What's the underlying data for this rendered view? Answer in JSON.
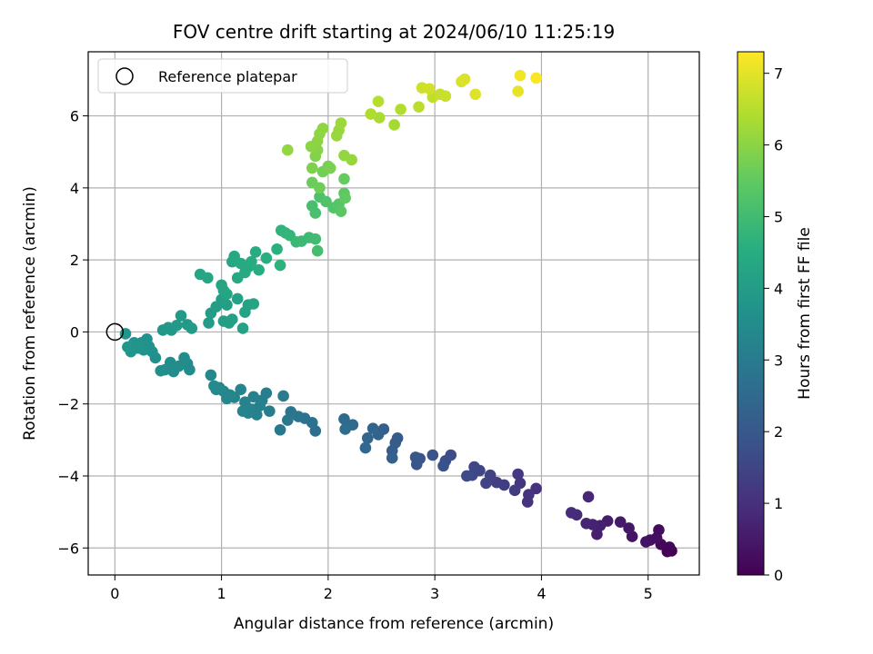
{
  "chart_data": {
    "type": "scatter",
    "title": "FOV centre drift starting at 2024/06/10 11:25:19",
    "xlabel": "Angular distance from reference (arcmin)",
    "ylabel": "Rotation from reference (arcmin)",
    "xlim": [
      -0.25,
      5.48
    ],
    "ylim": [
      -6.75,
      7.78
    ],
    "xticks": [
      0,
      1,
      2,
      3,
      4,
      5
    ],
    "yticks": [
      -6,
      -4,
      -2,
      0,
      2,
      4,
      6
    ],
    "grid": true,
    "legend": {
      "position": "top-left",
      "entries": [
        "Reference platepar"
      ]
    },
    "reference_point": {
      "x": 0,
      "y": 0
    },
    "colorbar": {
      "label": "Hours from first FF file",
      "range": [
        0,
        7.3
      ],
      "ticks": [
        0,
        1,
        2,
        3,
        4,
        5,
        6,
        7
      ],
      "colormap": "viridis"
    },
    "points": [
      {
        "x": 5.22,
        "y": -6.08,
        "c": 0.0
      },
      {
        "x": 5.18,
        "y": -6.1,
        "c": 0.05
      },
      {
        "x": 5.2,
        "y": -5.98,
        "c": 0.1
      },
      {
        "x": 5.12,
        "y": -5.9,
        "c": 0.15
      },
      {
        "x": 5.1,
        "y": -5.5,
        "c": 0.2
      },
      {
        "x": 5.08,
        "y": -5.72,
        "c": 0.25
      },
      {
        "x": 5.02,
        "y": -5.78,
        "c": 0.3
      },
      {
        "x": 4.98,
        "y": -5.83,
        "c": 0.35
      },
      {
        "x": 4.85,
        "y": -5.68,
        "c": 0.4
      },
      {
        "x": 4.82,
        "y": -5.45,
        "c": 0.45
      },
      {
        "x": 4.74,
        "y": -5.28,
        "c": 0.5
      },
      {
        "x": 4.62,
        "y": -5.25,
        "c": 0.55
      },
      {
        "x": 4.52,
        "y": -5.62,
        "c": 0.6
      },
      {
        "x": 4.55,
        "y": -5.38,
        "c": 0.65
      },
      {
        "x": 4.48,
        "y": -5.35,
        "c": 0.7
      },
      {
        "x": 4.42,
        "y": -5.32,
        "c": 0.75
      },
      {
        "x": 4.44,
        "y": -4.58,
        "c": 0.8
      },
      {
        "x": 4.33,
        "y": -5.08,
        "c": 0.85
      },
      {
        "x": 4.28,
        "y": -5.02,
        "c": 0.9
      },
      {
        "x": 3.95,
        "y": -4.35,
        "c": 1.0
      },
      {
        "x": 3.87,
        "y": -4.72,
        "c": 1.05
      },
      {
        "x": 3.88,
        "y": -4.52,
        "c": 1.1
      },
      {
        "x": 3.8,
        "y": -4.2,
        "c": 1.15
      },
      {
        "x": 3.78,
        "y": -3.95,
        "c": 1.2
      },
      {
        "x": 3.75,
        "y": -4.4,
        "c": 1.25
      },
      {
        "x": 3.65,
        "y": -4.25,
        "c": 1.3
      },
      {
        "x": 3.58,
        "y": -4.18,
        "c": 1.35
      },
      {
        "x": 3.52,
        "y": -3.98,
        "c": 1.4
      },
      {
        "x": 3.48,
        "y": -4.2,
        "c": 1.45
      },
      {
        "x": 3.42,
        "y": -3.85,
        "c": 1.5
      },
      {
        "x": 3.37,
        "y": -3.75,
        "c": 1.55
      },
      {
        "x": 3.35,
        "y": -3.98,
        "c": 1.6
      },
      {
        "x": 3.3,
        "y": -4.0,
        "c": 1.65
      },
      {
        "x": 3.15,
        "y": -3.42,
        "c": 1.7
      },
      {
        "x": 3.1,
        "y": -3.58,
        "c": 1.75
      },
      {
        "x": 3.08,
        "y": -3.72,
        "c": 1.8
      },
      {
        "x": 2.98,
        "y": -3.42,
        "c": 1.85
      },
      {
        "x": 2.86,
        "y": -3.52,
        "c": 1.9
      },
      {
        "x": 2.83,
        "y": -3.68,
        "c": 1.95
      },
      {
        "x": 2.82,
        "y": -3.48,
        "c": 2.0
      },
      {
        "x": 2.65,
        "y": -2.95,
        "c": 2.05
      },
      {
        "x": 2.63,
        "y": -3.08,
        "c": 2.1
      },
      {
        "x": 2.6,
        "y": -3.3,
        "c": 2.15
      },
      {
        "x": 2.6,
        "y": -3.5,
        "c": 2.2
      },
      {
        "x": 2.52,
        "y": -2.7,
        "c": 2.25
      },
      {
        "x": 2.47,
        "y": -2.85,
        "c": 2.3
      },
      {
        "x": 2.42,
        "y": -2.68,
        "c": 2.35
      },
      {
        "x": 2.37,
        "y": -2.95,
        "c": 2.4
      },
      {
        "x": 2.35,
        "y": -3.22,
        "c": 2.45
      },
      {
        "x": 2.23,
        "y": -2.58,
        "c": 2.5
      },
      {
        "x": 2.15,
        "y": -2.42,
        "c": 2.55
      },
      {
        "x": 2.16,
        "y": -2.7,
        "c": 2.6
      },
      {
        "x": 1.88,
        "y": -2.75,
        "c": 2.65
      },
      {
        "x": 1.85,
        "y": -2.52,
        "c": 2.7
      },
      {
        "x": 1.78,
        "y": -2.4,
        "c": 2.75
      },
      {
        "x": 1.72,
        "y": -2.35,
        "c": 2.8
      },
      {
        "x": 1.65,
        "y": -2.22,
        "c": 2.85
      },
      {
        "x": 1.62,
        "y": -2.45,
        "c": 2.9
      },
      {
        "x": 1.55,
        "y": -2.72,
        "c": 2.95
      },
      {
        "x": 1.58,
        "y": -1.78,
        "c": 3.0
      },
      {
        "x": 1.45,
        "y": -2.2,
        "c": 3.05
      },
      {
        "x": 1.42,
        "y": -1.7,
        "c": 3.1
      },
      {
        "x": 1.38,
        "y": -1.9,
        "c": 3.12
      },
      {
        "x": 1.36,
        "y": -2.05,
        "c": 3.14
      },
      {
        "x": 1.33,
        "y": -2.3,
        "c": 3.16
      },
      {
        "x": 1.3,
        "y": -1.8,
        "c": 3.18
      },
      {
        "x": 1.28,
        "y": -2.15,
        "c": 3.2
      },
      {
        "x": 1.25,
        "y": -2.25,
        "c": 3.22
      },
      {
        "x": 1.22,
        "y": -1.95,
        "c": 3.24
      },
      {
        "x": 1.2,
        "y": -2.2,
        "c": 3.26
      },
      {
        "x": 1.18,
        "y": -1.6,
        "c": 3.28
      },
      {
        "x": 1.12,
        "y": -1.82,
        "c": 3.3
      },
      {
        "x": 1.08,
        "y": -1.75,
        "c": 3.32
      },
      {
        "x": 1.05,
        "y": -1.85,
        "c": 3.34
      },
      {
        "x": 1.02,
        "y": -1.65,
        "c": 3.36
      },
      {
        "x": 0.98,
        "y": -1.55,
        "c": 3.38
      },
      {
        "x": 0.95,
        "y": -1.6,
        "c": 3.4
      },
      {
        "x": 0.9,
        "y": -1.2,
        "c": 3.42
      },
      {
        "x": 0.93,
        "y": -1.5,
        "c": 3.44
      },
      {
        "x": 0.7,
        "y": -1.05,
        "c": 3.46
      },
      {
        "x": 0.68,
        "y": -0.88,
        "c": 3.48
      },
      {
        "x": 0.65,
        "y": -0.72,
        "c": 3.5
      },
      {
        "x": 0.6,
        "y": -0.95,
        "c": 3.52
      },
      {
        "x": 0.55,
        "y": -1.1,
        "c": 3.54
      },
      {
        "x": 0.52,
        "y": -0.85,
        "c": 3.56
      },
      {
        "x": 0.47,
        "y": -1.05,
        "c": 3.58
      },
      {
        "x": 0.43,
        "y": -1.08,
        "c": 3.6
      },
      {
        "x": 0.38,
        "y": -0.72,
        "c": 3.62
      },
      {
        "x": 0.35,
        "y": -0.55,
        "c": 3.64
      },
      {
        "x": 0.32,
        "y": -0.4,
        "c": 3.66
      },
      {
        "x": 0.3,
        "y": -0.2,
        "c": 3.68
      },
      {
        "x": 0.27,
        "y": -0.5,
        "c": 3.7
      },
      {
        "x": 0.25,
        "y": -0.3,
        "c": 3.72
      },
      {
        "x": 0.22,
        "y": -0.45,
        "c": 3.74
      },
      {
        "x": 0.18,
        "y": -0.3,
        "c": 3.76
      },
      {
        "x": 0.15,
        "y": -0.55,
        "c": 3.78
      },
      {
        "x": 0.12,
        "y": -0.42,
        "c": 3.8
      },
      {
        "x": 0.1,
        "y": -0.05,
        "c": 3.82
      },
      {
        "x": 0.45,
        "y": 0.05,
        "c": 3.84
      },
      {
        "x": 0.5,
        "y": 0.12,
        "c": 3.86
      },
      {
        "x": 0.53,
        "y": 0.05,
        "c": 3.88
      },
      {
        "x": 0.58,
        "y": 0.18,
        "c": 3.9
      },
      {
        "x": 0.62,
        "y": 0.45,
        "c": 3.92
      },
      {
        "x": 0.68,
        "y": 0.2,
        "c": 3.94
      },
      {
        "x": 0.72,
        "y": 0.1,
        "c": 3.96
      },
      {
        "x": 0.88,
        "y": 0.25,
        "c": 3.98
      },
      {
        "x": 0.9,
        "y": 0.52,
        "c": 4.0
      },
      {
        "x": 0.95,
        "y": 0.7,
        "c": 4.02
      },
      {
        "x": 1.0,
        "y": 0.9,
        "c": 4.04
      },
      {
        "x": 1.02,
        "y": 0.3,
        "c": 4.06
      },
      {
        "x": 1.05,
        "y": 0.75,
        "c": 4.08
      },
      {
        "x": 1.07,
        "y": 0.25,
        "c": 4.1
      },
      {
        "x": 1.1,
        "y": 0.35,
        "c": 4.12
      },
      {
        "x": 1.15,
        "y": 0.92,
        "c": 4.14
      },
      {
        "x": 1.2,
        "y": 0.1,
        "c": 4.16
      },
      {
        "x": 1.22,
        "y": 0.55,
        "c": 4.18
      },
      {
        "x": 1.25,
        "y": 0.75,
        "c": 4.2
      },
      {
        "x": 1.3,
        "y": 0.78,
        "c": 4.22
      },
      {
        "x": 1.0,
        "y": 1.3,
        "c": 4.24
      },
      {
        "x": 1.02,
        "y": 1.15,
        "c": 4.26
      },
      {
        "x": 1.05,
        "y": 1.05,
        "c": 4.28
      },
      {
        "x": 0.8,
        "y": 1.6,
        "c": 4.3
      },
      {
        "x": 0.87,
        "y": 1.5,
        "c": 4.32
      },
      {
        "x": 1.1,
        "y": 1.95,
        "c": 4.34
      },
      {
        "x": 1.12,
        "y": 2.1,
        "c": 4.36
      },
      {
        "x": 1.15,
        "y": 1.5,
        "c": 4.38
      },
      {
        "x": 1.18,
        "y": 1.9,
        "c": 4.4
      },
      {
        "x": 1.22,
        "y": 1.65,
        "c": 4.42
      },
      {
        "x": 1.25,
        "y": 1.8,
        "c": 4.44
      },
      {
        "x": 1.28,
        "y": 1.95,
        "c": 4.46
      },
      {
        "x": 1.32,
        "y": 2.22,
        "c": 4.48
      },
      {
        "x": 1.35,
        "y": 1.72,
        "c": 4.5
      },
      {
        "x": 1.42,
        "y": 2.05,
        "c": 4.55
      },
      {
        "x": 1.52,
        "y": 2.3,
        "c": 4.6
      },
      {
        "x": 1.55,
        "y": 1.85,
        "c": 4.65
      },
      {
        "x": 1.56,
        "y": 2.82,
        "c": 4.7
      },
      {
        "x": 1.6,
        "y": 2.75,
        "c": 4.75
      },
      {
        "x": 1.64,
        "y": 2.68,
        "c": 4.8
      },
      {
        "x": 1.7,
        "y": 2.5,
        "c": 4.85
      },
      {
        "x": 1.75,
        "y": 2.52,
        "c": 4.9
      },
      {
        "x": 1.82,
        "y": 2.62,
        "c": 4.95
      },
      {
        "x": 1.88,
        "y": 2.58,
        "c": 5.0
      },
      {
        "x": 1.9,
        "y": 2.25,
        "c": 5.05
      },
      {
        "x": 1.85,
        "y": 3.5,
        "c": 5.1
      },
      {
        "x": 1.88,
        "y": 3.3,
        "c": 5.15
      },
      {
        "x": 1.92,
        "y": 3.75,
        "c": 5.2
      },
      {
        "x": 1.98,
        "y": 3.62,
        "c": 5.25
      },
      {
        "x": 2.05,
        "y": 3.45,
        "c": 5.3
      },
      {
        "x": 2.1,
        "y": 3.55,
        "c": 5.35
      },
      {
        "x": 2.12,
        "y": 3.35,
        "c": 5.4
      },
      {
        "x": 2.15,
        "y": 3.85,
        "c": 5.45
      },
      {
        "x": 2.16,
        "y": 3.72,
        "c": 5.5
      },
      {
        "x": 2.15,
        "y": 4.25,
        "c": 5.55
      },
      {
        "x": 1.85,
        "y": 4.15,
        "c": 5.6
      },
      {
        "x": 1.92,
        "y": 4.0,
        "c": 5.65
      },
      {
        "x": 1.95,
        "y": 4.45,
        "c": 5.7
      },
      {
        "x": 2.0,
        "y": 4.6,
        "c": 5.75
      },
      {
        "x": 2.02,
        "y": 4.55,
        "c": 5.8
      },
      {
        "x": 1.85,
        "y": 4.55,
        "c": 5.85
      },
      {
        "x": 1.88,
        "y": 4.88,
        "c": 5.9
      },
      {
        "x": 1.9,
        "y": 5.05,
        "c": 5.95
      },
      {
        "x": 1.84,
        "y": 5.15,
        "c": 6.0
      },
      {
        "x": 1.9,
        "y": 5.3,
        "c": 6.02
      },
      {
        "x": 1.92,
        "y": 5.5,
        "c": 6.04
      },
      {
        "x": 1.95,
        "y": 5.65,
        "c": 6.06
      },
      {
        "x": 1.62,
        "y": 5.05,
        "c": 6.08
      },
      {
        "x": 2.15,
        "y": 4.9,
        "c": 6.1
      },
      {
        "x": 2.22,
        "y": 4.78,
        "c": 6.12
      },
      {
        "x": 2.08,
        "y": 5.45,
        "c": 6.14
      },
      {
        "x": 2.1,
        "y": 5.6,
        "c": 6.16
      },
      {
        "x": 2.12,
        "y": 5.8,
        "c": 6.2
      },
      {
        "x": 2.62,
        "y": 5.75,
        "c": 6.3
      },
      {
        "x": 2.48,
        "y": 5.95,
        "c": 6.35
      },
      {
        "x": 2.4,
        "y": 6.05,
        "c": 6.4
      },
      {
        "x": 2.68,
        "y": 6.18,
        "c": 6.45
      },
      {
        "x": 2.47,
        "y": 6.4,
        "c": 6.5
      },
      {
        "x": 2.85,
        "y": 6.25,
        "c": 6.55
      },
      {
        "x": 2.98,
        "y": 6.52,
        "c": 6.6
      },
      {
        "x": 3.05,
        "y": 6.6,
        "c": 6.65
      },
      {
        "x": 3.1,
        "y": 6.55,
        "c": 6.7
      },
      {
        "x": 2.88,
        "y": 6.78,
        "c": 6.75
      },
      {
        "x": 2.95,
        "y": 6.75,
        "c": 6.8
      },
      {
        "x": 3.25,
        "y": 6.95,
        "c": 6.85
      },
      {
        "x": 3.28,
        "y": 7.02,
        "c": 6.9
      },
      {
        "x": 3.38,
        "y": 6.6,
        "c": 6.95
      },
      {
        "x": 3.78,
        "y": 6.68,
        "c": 7.05
      },
      {
        "x": 3.8,
        "y": 7.12,
        "c": 7.15
      },
      {
        "x": 3.95,
        "y": 7.05,
        "c": 7.25
      }
    ]
  }
}
